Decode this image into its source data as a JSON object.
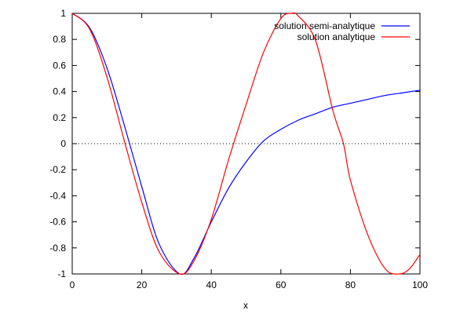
{
  "chart_data": {
    "type": "line",
    "xlabel": "x",
    "ylabel": "",
    "xlim": [
      0,
      100
    ],
    "ylim": [
      -1,
      1
    ],
    "x_ticks": [
      0,
      20,
      40,
      60,
      80,
      100
    ],
    "y_ticks": [
      -1,
      -0.8,
      -0.6,
      -0.4,
      -0.2,
      0,
      0.2,
      0.4,
      0.6,
      0.8,
      1
    ],
    "x_tick_labels": [
      "0",
      "20",
      "40",
      "60",
      "80",
      "100"
    ],
    "y_tick_labels": [
      "-1",
      "-0.8",
      "-0.6",
      "-0.4",
      "-0.2",
      "0",
      "0.2",
      "0.4",
      "0.6",
      "0.8",
      "1"
    ],
    "legend_position": "top-right",
    "zero_line": {
      "y": 0,
      "style": "dotted",
      "color": "#000000"
    },
    "series": [
      {
        "name": "solution semi-analytique",
        "color": "#0000ff",
        "x": [
          0,
          5,
          10,
          15,
          20,
          25,
          31,
          35,
          40,
          45,
          50,
          55,
          60,
          65,
          70,
          75,
          80,
          85,
          90,
          95,
          100
        ],
        "y": [
          1,
          0.89,
          0.58,
          0.14,
          -0.33,
          -0.77,
          -1,
          -0.88,
          -0.6,
          -0.34,
          -0.14,
          0.02,
          0.11,
          0.18,
          0.23,
          0.28,
          0.31,
          0.34,
          0.37,
          0.39,
          0.41
        ]
      },
      {
        "name": "solution analytique",
        "color": "#ff0000",
        "x": [
          0,
          5,
          10,
          15,
          20,
          25,
          31,
          35,
          40,
          45,
          50,
          55,
          60,
          63,
          65,
          70,
          75,
          78,
          80,
          85,
          90,
          94,
          97,
          100
        ],
        "y": [
          1,
          0.88,
          0.51,
          0.02,
          -0.45,
          -0.83,
          -1,
          -0.9,
          -0.58,
          -0.12,
          0.3,
          0.7,
          0.96,
          1,
          0.98,
          0.79,
          0.25,
          0,
          -0.28,
          -0.7,
          -0.96,
          -1,
          -0.96,
          -0.85
        ]
      }
    ]
  }
}
